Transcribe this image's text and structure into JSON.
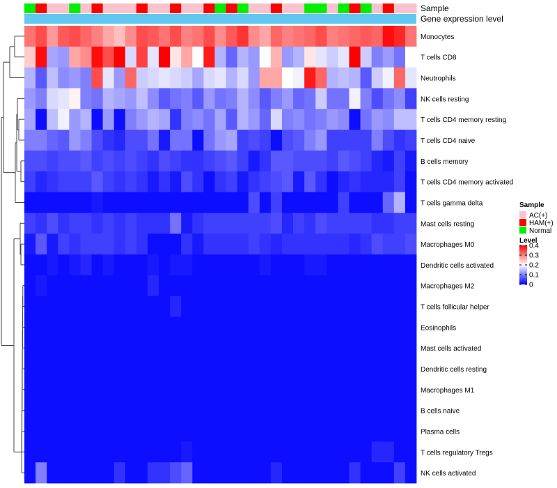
{
  "chart_data": {
    "type": "heatmap",
    "annotation_labels": [
      "Sample",
      "Gene expression level"
    ],
    "sample_groups": [
      "Normal",
      "HAM(+)",
      "AC(+)",
      "AC(+)",
      "Normal",
      "AC(+)",
      "HAM(+)",
      "AC(+)",
      "AC(+)",
      "AC(+)",
      "HAM(+)",
      "AC(+)",
      "AC(+)",
      "HAM(+)",
      "AC(+)",
      "AC(+)",
      "HAM(+)",
      "Normal",
      "HAM(+)",
      "Normal",
      "AC(+)",
      "AC(+)",
      "HAM(+)",
      "AC(+)",
      "AC(+)",
      "Normal",
      "Normal",
      "AC(+)",
      "Normal",
      "HAM(+)",
      "Normal",
      "AC(+)",
      "HAM(+)",
      "AC(+)",
      "AC(+)"
    ],
    "rows": [
      "Monocytes",
      "T cells CD8",
      "Neutrophils",
      "NK cells resting",
      "T cells CD4 memory resting",
      "T cells CD4 naive",
      "B cells memory",
      "T cells CD4 memory activated",
      "T cells gamma delta",
      "Mast cells resting",
      "Macrophages M0",
      "Dendritic cells activated",
      "Macrophages M2",
      "T cells follicular helper",
      "Eosinophils",
      "Mast cells activated",
      "Dendritic cells resting",
      "Macrophages M1",
      "B cells naive",
      "Plasma cells",
      "T cells regulatory  Tregs",
      "NK cells activated"
    ],
    "values": [
      [
        0.31,
        0.34,
        0.28,
        0.33,
        0.34,
        0.32,
        0.3,
        0.27,
        0.25,
        0.29,
        0.34,
        0.33,
        0.31,
        0.34,
        0.3,
        0.31,
        0.34,
        0.29,
        0.33,
        0.36,
        0.29,
        0.27,
        0.32,
        0.3,
        0.31,
        0.32,
        0.34,
        0.3,
        0.31,
        0.32,
        0.33,
        0.32,
        0.39,
        0.37,
        0.31
      ],
      [
        0.24,
        0.39,
        0.13,
        0.12,
        0.27,
        0.29,
        0.39,
        0.34,
        0.4,
        0.17,
        0.35,
        0.18,
        0.4,
        0.22,
        0.27,
        0.2,
        0.38,
        0.14,
        0.08,
        0.14,
        0.12,
        0.2,
        0.26,
        0.12,
        0.14,
        0.22,
        0.18,
        0.16,
        0.18,
        0.4,
        0.16,
        0.1,
        0.12,
        0.09,
        0.2
      ],
      [
        0.14,
        0.07,
        0.15,
        0.11,
        0.12,
        0.1,
        0.34,
        0.18,
        0.12,
        0.32,
        0.16,
        0.17,
        0.18,
        0.17,
        0.16,
        0.13,
        0.17,
        0.18,
        0.14,
        0.17,
        0.12,
        0.27,
        0.27,
        0.2,
        0.19,
        0.38,
        0.32,
        0.14,
        0.15,
        0.14,
        0.07,
        0.16,
        0.19,
        0.32,
        0.18
      ],
      [
        0.12,
        0.1,
        0.17,
        0.18,
        0.21,
        0.1,
        0.09,
        0.14,
        0.13,
        0.12,
        0.15,
        0.11,
        0.07,
        0.09,
        0.1,
        0.07,
        0.12,
        0.09,
        0.1,
        0.14,
        0.11,
        0.07,
        0.1,
        0.12,
        0.08,
        0.09,
        0.16,
        0.09,
        0.09,
        0.19,
        0.1,
        0.06,
        0.09,
        0.11,
        0.05
      ],
      [
        0.13,
        0.01,
        0.15,
        0.19,
        0.12,
        0.14,
        0.01,
        0.12,
        0.01,
        0.1,
        0.12,
        0.14,
        0.13,
        0.04,
        0.1,
        0.11,
        0.09,
        0.13,
        0.07,
        0.14,
        0.12,
        0.08,
        0.17,
        0.1,
        0.11,
        0.09,
        0.1,
        0.12,
        0.11,
        0.01,
        0.09,
        0.12,
        0.11,
        0.15,
        0.15
      ],
      [
        0.1,
        0.1,
        0.08,
        0.07,
        0.12,
        0.1,
        0.06,
        0.04,
        0.03,
        0.06,
        0.06,
        0.09,
        0.02,
        0.09,
        0.09,
        0.01,
        0.09,
        0.12,
        0.13,
        0.05,
        0.06,
        0.05,
        0.01,
        0.06,
        0.07,
        0.1,
        0.12,
        0.05,
        0.05,
        0.05,
        0.05,
        0.1,
        0.06,
        0.04,
        0.05
      ],
      [
        0.06,
        0.06,
        0.05,
        0.06,
        0.06,
        0.07,
        0.05,
        0.06,
        0.05,
        0.06,
        0.05,
        0.04,
        0.06,
        0.05,
        0.04,
        0.04,
        0.05,
        0.06,
        0.07,
        0.05,
        0.02,
        0.04,
        0.07,
        0.07,
        0.06,
        0.06,
        0.06,
        0.05,
        0.07,
        0.06,
        0.05,
        0.03,
        0.02,
        0.05,
        0.02
      ],
      [
        0.05,
        0.03,
        0.04,
        0.05,
        0.05,
        0.05,
        0.07,
        0.05,
        0.04,
        0.05,
        0.04,
        0.02,
        0.04,
        0.02,
        0.06,
        0.04,
        0.01,
        0.04,
        0.05,
        0.02,
        0.04,
        0.05,
        0.06,
        0.07,
        0.02,
        0.07,
        0.04,
        0.01,
        0.03,
        0.04,
        0.03,
        0.03,
        0.03,
        0.05,
        0.01
      ],
      [
        0.01,
        0.01,
        0.01,
        0.01,
        0.01,
        0.01,
        0.02,
        0.01,
        0.01,
        0.01,
        0.01,
        0.01,
        0.01,
        0.01,
        0.01,
        0.01,
        0.01,
        0.01,
        0.01,
        0.01,
        0.06,
        0.01,
        0.05,
        0.01,
        0.01,
        0.01,
        0.01,
        0.01,
        0.05,
        0.01,
        0.01,
        0.01,
        0.08,
        0.14,
        0.01
      ],
      [
        0.05,
        0.04,
        0.06,
        0.04,
        0.05,
        0.05,
        0.04,
        0.05,
        0.04,
        0.05,
        0.04,
        0.04,
        0.04,
        0.09,
        0.02,
        0.04,
        0.05,
        0.05,
        0.05,
        0.05,
        0.05,
        0.05,
        0.06,
        0.03,
        0.05,
        0.04,
        0.06,
        0.05,
        0.05,
        0.05,
        0.05,
        0.04,
        0.04,
        0.05,
        0.05
      ],
      [
        0.02,
        0.07,
        0.02,
        0.05,
        0.04,
        0.05,
        0.05,
        0.05,
        0.04,
        0.05,
        0.04,
        0.01,
        0.01,
        0.01,
        0.04,
        0.02,
        0.04,
        0.04,
        0.04,
        0.04,
        0.05,
        0.04,
        0.03,
        0.04,
        0.04,
        0.04,
        0.04,
        0.04,
        0.04,
        0.03,
        0.04,
        0.06,
        0.05,
        0.05,
        0.06
      ],
      [
        0.01,
        0.01,
        0.02,
        0.01,
        0.02,
        0.03,
        0.01,
        0.02,
        0.01,
        0.01,
        0.01,
        0.02,
        0.01,
        0.02,
        0.02,
        0.01,
        0.01,
        0.01,
        0.01,
        0.01,
        0.01,
        0.02,
        0.01,
        0.01,
        0.01,
        0.02,
        0.02,
        0.01,
        0.01,
        0.01,
        0.01,
        0.01,
        0.01,
        0.01,
        0.01
      ],
      [
        0.01,
        0.02,
        0.01,
        0.01,
        0.01,
        0.01,
        0.01,
        0.01,
        0.01,
        0.01,
        0.01,
        0.03,
        0.01,
        0.01,
        0.01,
        0.01,
        0.01,
        0.01,
        0.01,
        0.01,
        0.01,
        0.01,
        0.01,
        0.01,
        0.01,
        0.01,
        0.01,
        0.01,
        0.01,
        0.01,
        0.01,
        0.01,
        0.01,
        0.01,
        0.01
      ],
      [
        0.01,
        0.01,
        0.01,
        0.01,
        0.01,
        0.01,
        0.01,
        0.01,
        0.01,
        0.01,
        0.01,
        0.01,
        0.01,
        0.03,
        0.01,
        0.01,
        0.01,
        0.01,
        0.01,
        0.01,
        0.01,
        0.01,
        0.01,
        0.01,
        0.01,
        0.01,
        0.01,
        0.01,
        0.01,
        0.01,
        0.01,
        0.01,
        0.01,
        0.01,
        0.01
      ],
      [
        0.01,
        0.01,
        0.01,
        0.01,
        0.01,
        0.01,
        0.01,
        0.01,
        0.01,
        0.01,
        0.01,
        0.01,
        0.01,
        0.01,
        0.01,
        0.01,
        0.01,
        0.01,
        0.01,
        0.01,
        0.01,
        0.01,
        0.01,
        0.01,
        0.01,
        0.01,
        0.01,
        0.01,
        0.01,
        0.01,
        0.01,
        0.01,
        0.01,
        0.01,
        0.01
      ],
      [
        0.01,
        0.01,
        0.01,
        0.01,
        0.01,
        0.01,
        0.01,
        0.01,
        0.01,
        0.01,
        0.01,
        0.01,
        0.01,
        0.01,
        0.01,
        0.01,
        0.01,
        0.01,
        0.01,
        0.01,
        0.01,
        0.01,
        0.01,
        0.01,
        0.01,
        0.01,
        0.01,
        0.01,
        0.01,
        0.01,
        0.01,
        0.01,
        0.01,
        0.01,
        0.01
      ],
      [
        0.01,
        0.01,
        0.01,
        0.01,
        0.01,
        0.01,
        0.01,
        0.01,
        0.01,
        0.01,
        0.01,
        0.01,
        0.01,
        0.01,
        0.01,
        0.01,
        0.01,
        0.01,
        0.01,
        0.01,
        0.01,
        0.01,
        0.01,
        0.01,
        0.01,
        0.01,
        0.01,
        0.01,
        0.01,
        0.01,
        0.01,
        0.01,
        0.01,
        0.01,
        0.01
      ],
      [
        0.01,
        0.01,
        0.01,
        0.01,
        0.01,
        0.01,
        0.01,
        0.01,
        0.01,
        0.01,
        0.01,
        0.01,
        0.01,
        0.01,
        0.01,
        0.01,
        0.01,
        0.01,
        0.01,
        0.01,
        0.01,
        0.01,
        0.01,
        0.01,
        0.01,
        0.01,
        0.01,
        0.01,
        0.01,
        0.01,
        0.01,
        0.01,
        0.01,
        0.01,
        0.01
      ],
      [
        0.01,
        0.01,
        0.01,
        0.01,
        0.01,
        0.01,
        0.01,
        0.01,
        0.01,
        0.01,
        0.01,
        0.01,
        0.01,
        0.01,
        0.01,
        0.01,
        0.01,
        0.01,
        0.01,
        0.01,
        0.01,
        0.01,
        0.01,
        0.01,
        0.01,
        0.01,
        0.01,
        0.01,
        0.01,
        0.01,
        0.01,
        0.01,
        0.01,
        0.01,
        0.01
      ],
      [
        0.01,
        0.01,
        0.01,
        0.01,
        0.01,
        0.01,
        0.01,
        0.01,
        0.01,
        0.01,
        0.01,
        0.01,
        0.01,
        0.01,
        0.01,
        0.01,
        0.01,
        0.01,
        0.01,
        0.01,
        0.01,
        0.01,
        0.01,
        0.01,
        0.01,
        0.01,
        0.01,
        0.01,
        0.01,
        0.01,
        0.01,
        0.01,
        0.01,
        0.01,
        0.01
      ],
      [
        0.01,
        0.01,
        0.01,
        0.01,
        0.01,
        0.01,
        0.01,
        0.01,
        0.01,
        0.01,
        0.01,
        0.01,
        0.01,
        0.01,
        0.02,
        0.01,
        0.01,
        0.01,
        0.01,
        0.01,
        0.01,
        0.01,
        0.01,
        0.01,
        0.01,
        0.01,
        0.01,
        0.01,
        0.01,
        0.01,
        0.01,
        0.03,
        0.03,
        0.01,
        0.01
      ],
      [
        0.01,
        0.1,
        0.01,
        0.01,
        0.01,
        0.01,
        0.01,
        0.01,
        0.04,
        0.01,
        0.01,
        0.04,
        0.04,
        0.06,
        0.08,
        0.01,
        0.01,
        0.01,
        0.01,
        0.01,
        0.01,
        0.01,
        0.03,
        0.01,
        0.01,
        0.01,
        0.01,
        0.01,
        0.01,
        0.04,
        0.01,
        0.01,
        0.01,
        0.05,
        0.01
      ]
    ],
    "legend_sample": {
      "title": "Sample",
      "entries": [
        {
          "label": "AC(+)",
          "color": "#f8c3cf"
        },
        {
          "label": "HAM(+)",
          "color": "#ff0000"
        },
        {
          "label": "Normal",
          "color": "#00ee00"
        }
      ]
    },
    "legend_level": {
      "title": "Level",
      "ticks": [
        "0.4",
        "0.3",
        "0.2",
        "0.1",
        "0"
      ],
      "tick_values": [
        0.4,
        0.3,
        0.2,
        0.1,
        0
      ],
      "range": [
        0,
        0.4
      ],
      "colors": [
        "#0000ff",
        "#ffffff",
        "#ff0000"
      ]
    },
    "annotation_colors": {
      "expression_bar": "#62c8f2"
    }
  }
}
